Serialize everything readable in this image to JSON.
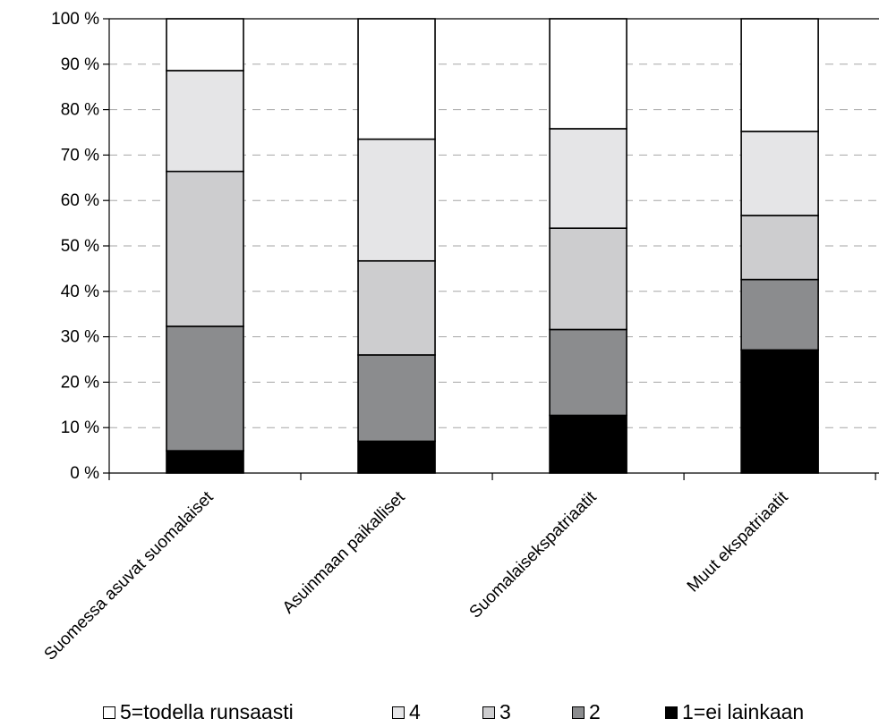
{
  "chart_data": {
    "type": "bar",
    "stacked": true,
    "percent_stacked": true,
    "title": "",
    "xlabel": "",
    "ylabel": "",
    "ylim": [
      0,
      100
    ],
    "yticks": [
      "0 %",
      "10 %",
      "20 %",
      "30 %",
      "40 %",
      "50 %",
      "60 %",
      "70 %",
      "80 %",
      "90 %",
      "100 %"
    ],
    "grid": "horizontal dashed",
    "legend_position": "bottom",
    "categories": [
      "Suomessa asuvat suomalaiset",
      "Asuinmaan paikalliset",
      "Suomalaisekspatriaatit",
      "Muut ekspatriaatit"
    ],
    "series": [
      {
        "name": "1=ei lainkaan",
        "color": "#000000",
        "values": [
          4.9,
          7.0,
          12.7,
          27.1
        ]
      },
      {
        "name": "2",
        "color": "#8b8c8e",
        "values": [
          27.4,
          19.0,
          18.9,
          15.5
        ]
      },
      {
        "name": "3",
        "color": "#cdcdcf",
        "values": [
          34.1,
          20.7,
          22.3,
          14.1
        ]
      },
      {
        "name": "4",
        "color": "#e5e5e7",
        "values": [
          22.2,
          26.8,
          21.9,
          18.5
        ]
      },
      {
        "name": "5=todella runsaasti",
        "color": "#ffffff",
        "values": [
          11.4,
          26.5,
          24.2,
          24.8
        ]
      }
    ],
    "legend_order": [
      "5=todella runsaasti",
      "4",
      "3",
      "2",
      "1=ei lainkaan"
    ]
  }
}
